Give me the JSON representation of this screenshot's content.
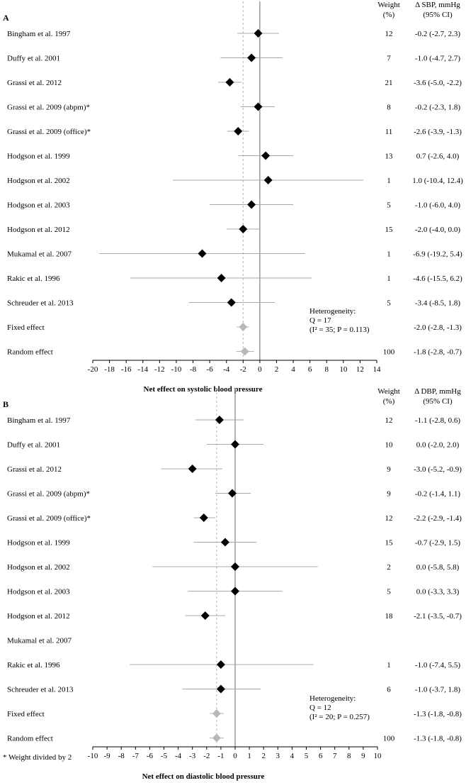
{
  "footnote": "* Weight divided by 2",
  "chart_data": [
    {
      "panel_label": "A",
      "type": "forest",
      "xlabel": "Net effect on systolic blood pressure",
      "xlim": [
        -20,
        14
      ],
      "xticks": [
        -20,
        -18,
        -16,
        -14,
        -12,
        -10,
        -8,
        -6,
        -4,
        -2,
        0,
        2,
        4,
        6,
        8,
        10,
        12,
        14
      ],
      "pooled_ref": -2.0,
      "col_weight_header": [
        "Weight",
        "(%)"
      ],
      "col_effect_header": [
        "Δ SBP, mmHg",
        "(95% CI)"
      ],
      "heterogeneity": [
        "Heterogeneity:",
        "Q = 17",
        "(I² = 35; P = 0.113)"
      ],
      "studies": [
        {
          "label": "Bingham et al. 1997",
          "est": -0.2,
          "lo": -2.7,
          "hi": 2.3,
          "weight": "12",
          "ci_text": "-0.2 (-2.7, 2.3)",
          "kind": "study"
        },
        {
          "label": "Duffy et al. 2001",
          "est": -1.0,
          "lo": -4.7,
          "hi": 2.7,
          "weight": "7",
          "ci_text": "-1.0 (-4.7, 2.7)",
          "kind": "study"
        },
        {
          "label": "Grassi et al. 2012",
          "est": -3.6,
          "lo": -5.0,
          "hi": -2.2,
          "weight": "21",
          "ci_text": "-3.6 (-5.0, -2.2)",
          "kind": "study"
        },
        {
          "label": "Grassi et al. 2009 (abpm)*",
          "est": -0.2,
          "lo": -2.3,
          "hi": 1.8,
          "weight": "8",
          "ci_text": "-0.2 (-2.3, 1.8)",
          "kind": "study"
        },
        {
          "label": "Grassi et al. 2009 (office)*",
          "est": -2.6,
          "lo": -3.9,
          "hi": -1.3,
          "weight": "11",
          "ci_text": "-2.6 (-3.9, -1.3)",
          "kind": "study"
        },
        {
          "label": "Hodgson et al. 1999",
          "est": 0.7,
          "lo": -2.6,
          "hi": 4.0,
          "weight": "13",
          "ci_text": "0.7 (-2.6, 4.0)",
          "kind": "study"
        },
        {
          "label": "Hodgson et al. 2002",
          "est": 1.0,
          "lo": -10.4,
          "hi": 12.4,
          "weight": "1",
          "ci_text": "1.0 (-10.4, 12.4)",
          "kind": "study"
        },
        {
          "label": "Hodgson et al. 2003",
          "est": -1.0,
          "lo": -6.0,
          "hi": 4.0,
          "weight": "5",
          "ci_text": "-1.0 (-6.0, 4.0)",
          "kind": "study"
        },
        {
          "label": "Hodgson et al. 2012",
          "est": -2.0,
          "lo": -4.0,
          "hi": 0.0,
          "weight": "15",
          "ci_text": "-2.0 (-4.0, 0.0)",
          "kind": "study"
        },
        {
          "label": "Mukamal et al. 2007",
          "est": -6.9,
          "lo": -19.2,
          "hi": 5.4,
          "weight": "1",
          "ci_text": "-6.9 (-19.2, 5.4)",
          "kind": "study"
        },
        {
          "label": "Rakic et al. 1996",
          "est": -4.6,
          "lo": -15.5,
          "hi": 6.2,
          "weight": "1",
          "ci_text": "-4.6 (-15.5, 6.2)",
          "kind": "study"
        },
        {
          "label": "Schreuder et al. 2013",
          "est": -3.4,
          "lo": -8.5,
          "hi": 1.8,
          "weight": "5",
          "ci_text": "-3.4 (-8.5, 1.8)",
          "kind": "study"
        },
        {
          "label": "Fixed effect",
          "est": -2.0,
          "lo": -2.8,
          "hi": -1.3,
          "weight": "",
          "ci_text": "-2.0 (-2.8, -1.3)",
          "kind": "pooled"
        },
        {
          "label": "Random effect",
          "est": -1.8,
          "lo": -2.8,
          "hi": -0.7,
          "weight": "100",
          "ci_text": "-1.8 (-2.8, -0.7)",
          "kind": "pooled"
        }
      ]
    },
    {
      "panel_label": "B",
      "type": "forest",
      "xlabel": "Net effect on diastolic blood pressure",
      "xlim": [
        -10,
        10
      ],
      "xticks": [
        -10,
        -9,
        -8,
        -7,
        -6,
        -5,
        -4,
        -3,
        -2,
        -1,
        0,
        1,
        2,
        3,
        4,
        5,
        6,
        7,
        8,
        9,
        10
      ],
      "pooled_ref": -1.3,
      "col_weight_header": [
        "Weight",
        "(%)"
      ],
      "col_effect_header": [
        "Δ DBP, mmHg",
        "(95% CI)"
      ],
      "heterogeneity": [
        "Heterogeneity:",
        "Q = 12",
        "(I² = 20; P = 0.257)"
      ],
      "studies": [
        {
          "label": "Bingham et al. 1997",
          "est": -1.1,
          "lo": -2.8,
          "hi": 0.6,
          "weight": "12",
          "ci_text": "-1.1 (-2.8, 0.6)",
          "kind": "study"
        },
        {
          "label": "Duffy et al. 2001",
          "est": 0.0,
          "lo": -2.0,
          "hi": 2.0,
          "weight": "10",
          "ci_text": "0.0 (-2.0, 2.0)",
          "kind": "study"
        },
        {
          "label": "Grassi et al. 2012",
          "est": -3.0,
          "lo": -5.2,
          "hi": -0.9,
          "weight": "9",
          "ci_text": "-3.0 (-5.2, -0.9)",
          "kind": "study"
        },
        {
          "label": "Grassi et al. 2009 (abpm)*",
          "est": -0.2,
          "lo": -1.4,
          "hi": 1.1,
          "weight": "9",
          "ci_text": "-0.2 (-1.4, 1.1)",
          "kind": "study"
        },
        {
          "label": "Grassi et al. 2009 (office)*",
          "est": -2.2,
          "lo": -2.9,
          "hi": -1.4,
          "weight": "12",
          "ci_text": "-2.2 (-2.9, -1.4)",
          "kind": "study"
        },
        {
          "label": "Hodgson et al. 1999",
          "est": -0.7,
          "lo": -2.9,
          "hi": 1.5,
          "weight": "15",
          "ci_text": "-0.7 (-2.9, 1.5)",
          "kind": "study"
        },
        {
          "label": "Hodgson et al. 2002",
          "est": 0.0,
          "lo": -5.8,
          "hi": 5.8,
          "weight": "2",
          "ci_text": "0.0 (-5.8, 5.8)",
          "kind": "study"
        },
        {
          "label": "Hodgson et al. 2003",
          "est": 0.0,
          "lo": -3.3,
          "hi": 3.3,
          "weight": "5",
          "ci_text": "0.0 (-3.3, 3.3)",
          "kind": "study"
        },
        {
          "label": "Hodgson et al. 2012",
          "est": -2.1,
          "lo": -3.5,
          "hi": -0.7,
          "weight": "18",
          "ci_text": "-2.1 (-3.5, -0.7)",
          "kind": "study"
        },
        {
          "label": "Mukamal et al. 2007",
          "est": null,
          "lo": null,
          "hi": null,
          "weight": "",
          "ci_text": "",
          "kind": "study"
        },
        {
          "label": "Rakic et al. 1996",
          "est": -1.0,
          "lo": -7.4,
          "hi": 5.5,
          "weight": "1",
          "ci_text": "-1.0 (-7.4, 5.5)",
          "kind": "study"
        },
        {
          "label": "Schreuder et al. 2013",
          "est": -1.0,
          "lo": -3.7,
          "hi": 1.8,
          "weight": "6",
          "ci_text": "-1.0 (-3.7, 1.8)",
          "kind": "study"
        },
        {
          "label": "Fixed effect",
          "est": -1.3,
          "lo": -1.8,
          "hi": -0.8,
          "weight": "",
          "ci_text": "-1.3 (-1.8, -0.8)",
          "kind": "pooled"
        },
        {
          "label": "Random effect",
          "est": -1.3,
          "lo": -1.8,
          "hi": -0.8,
          "weight": "100",
          "ci_text": "-1.3 (-1.8, -0.8)",
          "kind": "pooled"
        }
      ]
    }
  ]
}
